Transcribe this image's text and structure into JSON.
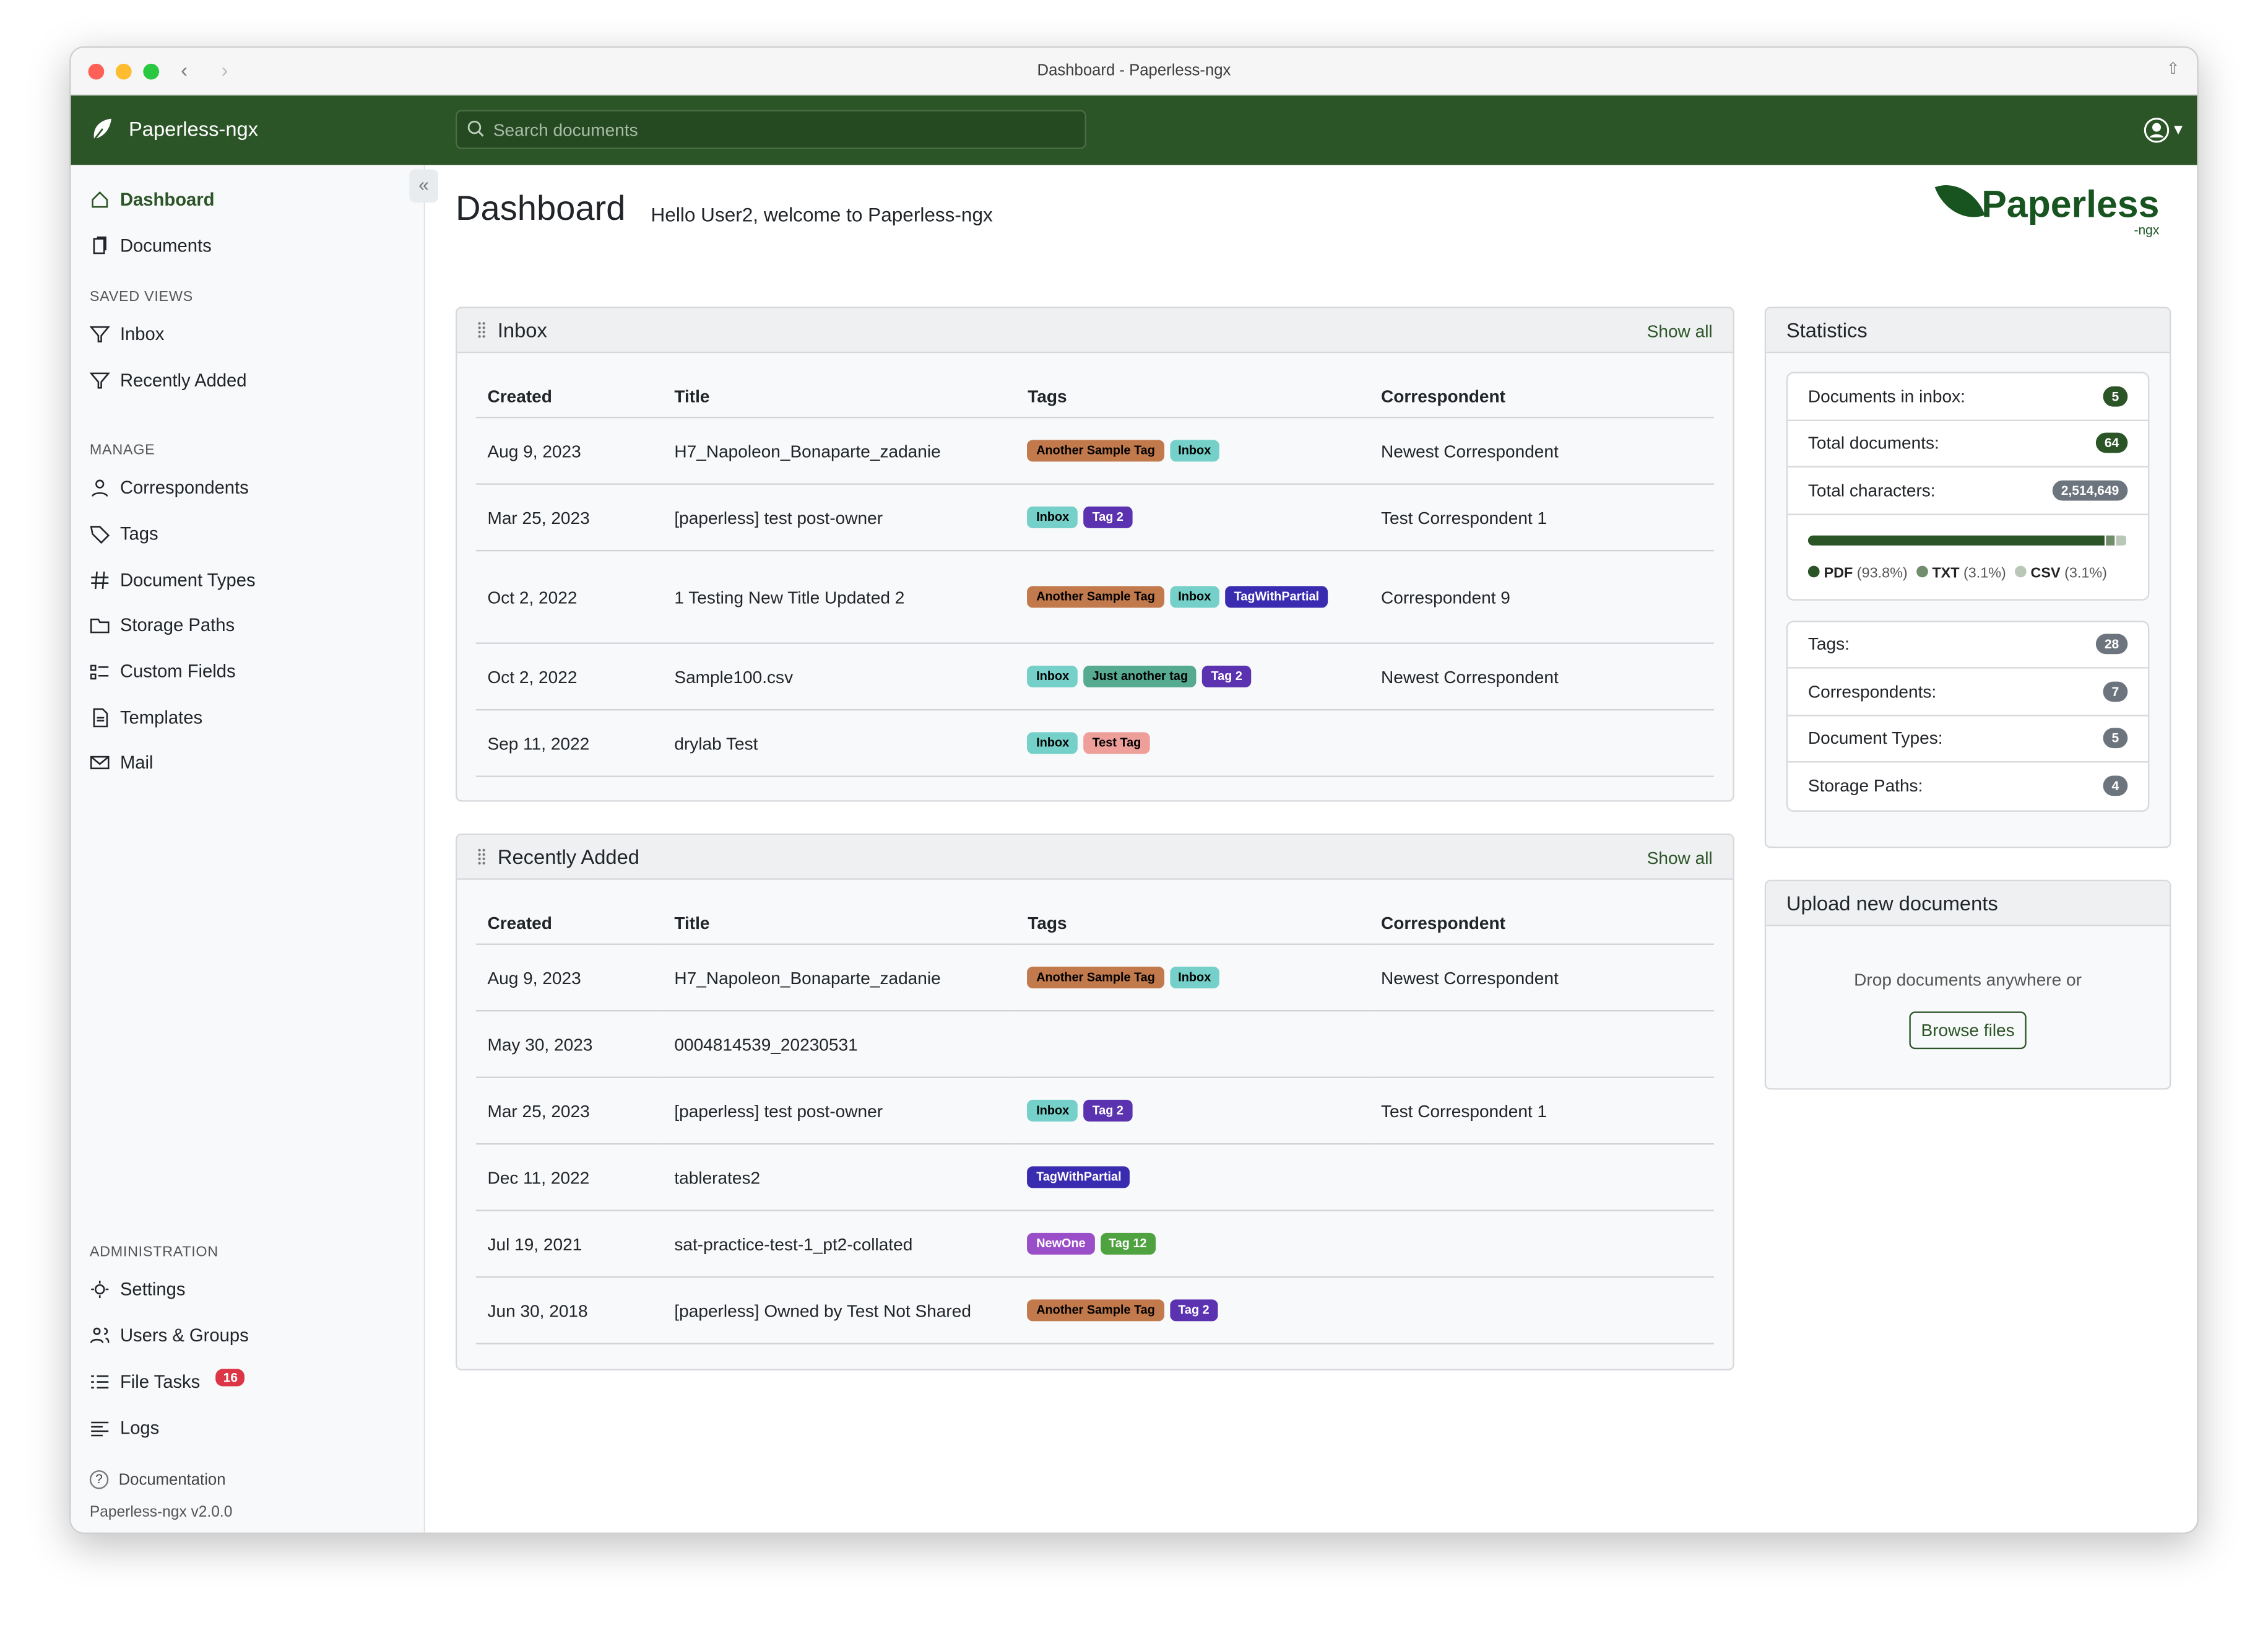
{
  "window": {
    "title": "Dashboard - Paperless-ngx"
  },
  "navbar": {
    "brand": "Paperless-ngx",
    "search_placeholder": "Search documents"
  },
  "sidebar": {
    "main": [
      {
        "label": "Dashboard",
        "icon": "house-icon",
        "active": true
      },
      {
        "label": "Documents",
        "icon": "files-icon"
      }
    ],
    "saved_views_heading": "SAVED VIEWS",
    "saved_views": [
      {
        "label": "Inbox",
        "icon": "funnel-icon"
      },
      {
        "label": "Recently Added",
        "icon": "funnel-icon"
      }
    ],
    "manage_heading": "MANAGE",
    "manage": [
      {
        "label": "Correspondents",
        "icon": "person-icon"
      },
      {
        "label": "Tags",
        "icon": "tags-icon"
      },
      {
        "label": "Document Types",
        "icon": "hash-icon"
      },
      {
        "label": "Storage Paths",
        "icon": "folder-icon"
      },
      {
        "label": "Custom Fields",
        "icon": "ui-radios-icon"
      },
      {
        "label": "Templates",
        "icon": "file-text-icon"
      },
      {
        "label": "Mail",
        "icon": "envelope-icon"
      }
    ],
    "admin_heading": "ADMINISTRATION",
    "admin": [
      {
        "label": "Settings",
        "icon": "gear-icon"
      },
      {
        "label": "Users & Groups",
        "icon": "people-icon"
      },
      {
        "label": "File Tasks",
        "icon": "list-task-icon",
        "badge": "16"
      },
      {
        "label": "Logs",
        "icon": "text-left-icon"
      }
    ],
    "documentation": "Documentation",
    "version": "Paperless-ngx v2.0.0"
  },
  "page": {
    "title": "Dashboard",
    "welcome": "Hello User2, welcome to Paperless-ngx",
    "logo_text": "Paperless",
    "logo_sub": "-ngx"
  },
  "tag_colors": {
    "Another Sample Tag": [
      "#c27a4d",
      "#000"
    ],
    "Inbox": [
      "#74d0c9",
      "#000"
    ],
    "Tag 2": [
      "#5b32b0",
      "#fff"
    ],
    "TagWithPartial": [
      "#3a2cb0",
      "#fff"
    ],
    "Just another tag": [
      "#55aa8f",
      "#000"
    ],
    "Test Tag": [
      "#ee9f9a",
      "#000"
    ],
    "NewOne": [
      "#9a4fc8",
      "#fff"
    ],
    "Tag 12": [
      "#4fa240",
      "#fff"
    ]
  },
  "widgets": [
    {
      "title": "Inbox",
      "show_all": "Show all",
      "columns": [
        "Created",
        "Title",
        "Tags",
        "Correspondent"
      ],
      "rows": [
        {
          "created": "Aug 9, 2023",
          "title": "H7_Napoleon_Bonaparte_zadanie",
          "tags": [
            "Another Sample Tag",
            "Inbox"
          ],
          "correspondent": "Newest Correspondent"
        },
        {
          "created": "Mar 25, 2023",
          "title": "[paperless] test post-owner",
          "tags": [
            "Inbox",
            "Tag 2"
          ],
          "correspondent": "Test Correspondent 1"
        },
        {
          "created": "Oct 2, 2022",
          "title": "1 Testing New Title Updated 2",
          "tags": [
            "Another Sample Tag",
            "Inbox",
            "TagWithPartial"
          ],
          "correspondent": "Correspondent 9"
        },
        {
          "created": "Oct 2, 2022",
          "title": "Sample100.csv",
          "tags": [
            "Inbox",
            "Just another tag",
            "Tag 2"
          ],
          "correspondent": "Newest Correspondent"
        },
        {
          "created": "Sep 11, 2022",
          "title": "drylab Test",
          "tags": [
            "Inbox",
            "Test Tag"
          ],
          "correspondent": ""
        }
      ]
    },
    {
      "title": "Recently Added",
      "show_all": "Show all",
      "columns": [
        "Created",
        "Title",
        "Tags",
        "Correspondent"
      ],
      "rows": [
        {
          "created": "Aug 9, 2023",
          "title": "H7_Napoleon_Bonaparte_zadanie",
          "tags": [
            "Another Sample Tag",
            "Inbox"
          ],
          "correspondent": "Newest Correspondent"
        },
        {
          "created": "May 30, 2023",
          "title": "0004814539_20230531",
          "tags": [],
          "correspondent": ""
        },
        {
          "created": "Mar 25, 2023",
          "title": "[paperless] test post-owner",
          "tags": [
            "Inbox",
            "Tag 2"
          ],
          "correspondent": "Test Correspondent 1"
        },
        {
          "created": "Dec 11, 2022",
          "title": "tablerates2",
          "tags": [
            "TagWithPartial"
          ],
          "correspondent": ""
        },
        {
          "created": "Jul 19, 2021",
          "title": "sat-practice-test-1_pt2-collated",
          "tags": [
            "NewOne",
            "Tag 12"
          ],
          "correspondent": ""
        },
        {
          "created": "Jun 30, 2018",
          "title": "[paperless] Owned by Test Not Shared",
          "tags": [
            "Another Sample Tag",
            "Tag 2"
          ],
          "correspondent": ""
        }
      ]
    }
  ],
  "statistics": {
    "title": "Statistics",
    "group1": [
      {
        "label": "Documents in inbox:",
        "value": "5",
        "color": "#2b5427"
      },
      {
        "label": "Total documents:",
        "value": "64",
        "color": "#2b5427"
      },
      {
        "label": "Total characters:",
        "value": "2,514,649",
        "color": "#6c757d"
      }
    ],
    "file_types": [
      {
        "name": "PDF",
        "percent": 93.8,
        "label": "(93.8%)",
        "color": "#2b5427"
      },
      {
        "name": "TXT",
        "percent": 3.1,
        "label": "(3.1%)",
        "color": "#718d6c"
      },
      {
        "name": "CSV",
        "percent": 3.1,
        "label": "(3.1%)",
        "color": "#b9c7b6"
      }
    ],
    "group2": [
      {
        "label": "Tags:",
        "value": "28"
      },
      {
        "label": "Correspondents:",
        "value": "7"
      },
      {
        "label": "Document Types:",
        "value": "5"
      },
      {
        "label": "Storage Paths:",
        "value": "4"
      }
    ]
  },
  "upload": {
    "title": "Upload new documents",
    "drop_text": "Drop documents anywhere or",
    "browse": "Browse files"
  }
}
